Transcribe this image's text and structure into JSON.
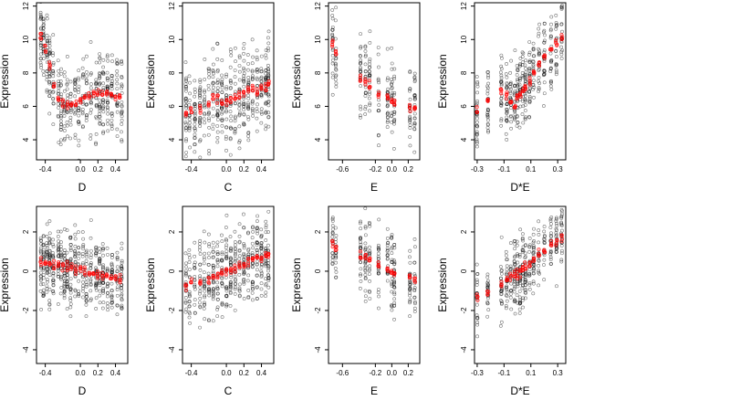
{
  "figure": {
    "background": "#ffffff"
  },
  "colors": {
    "observed": "#000000",
    "fitted": "#ff0000",
    "axis": "#000000"
  },
  "chart_data": [
    {
      "type": "scatter",
      "xlabel": "D",
      "ylabel": "Expression",
      "xlim": [
        -0.5,
        0.54
      ],
      "ylim": [
        2.8,
        12.2
      ],
      "xticks": [
        -0.4,
        0.0,
        0.2,
        0.4
      ],
      "xtick_labels": [
        "-0.4",
        "0.0",
        "0.2",
        "0.4"
      ],
      "yticks": [
        4,
        6,
        8,
        10,
        12
      ],
      "ytick_labels": [
        "4",
        "6",
        "8",
        "10",
        "12"
      ],
      "x_columns": [
        -0.45,
        -0.42,
        -0.38,
        -0.35,
        -0.31,
        -0.25,
        -0.22,
        -0.18,
        -0.15,
        -0.11,
        -0.06,
        -0.02,
        0.03,
        0.07,
        0.12,
        0.18,
        0.22,
        0.26,
        0.31,
        0.36,
        0.42,
        0.47
      ],
      "fitted": {
        "x": [
          -0.45,
          -0.4,
          -0.35,
          -0.3,
          -0.25,
          -0.2,
          -0.15,
          -0.1,
          -0.05,
          0.0,
          0.05,
          0.1,
          0.15,
          0.2,
          0.25,
          0.3,
          0.35,
          0.4,
          0.45
        ],
        "y": [
          10.2,
          9.4,
          8.4,
          7.2,
          6.4,
          6.1,
          6.0,
          6.1,
          6.2,
          6.3,
          6.5,
          6.6,
          6.7,
          6.8,
          6.7,
          6.8,
          6.7,
          6.6,
          6.5
        ]
      },
      "observed_spread": 2.2
    },
    {
      "type": "scatter",
      "xlabel": "C",
      "ylabel": "Expression",
      "xlim": [
        -0.5,
        0.54
      ],
      "ylim": [
        2.8,
        12.2
      ],
      "xticks": [
        -0.4,
        0.0,
        0.2,
        0.4
      ],
      "xtick_labels": [
        "-0.4",
        "0.0",
        "0.2",
        "0.4"
      ],
      "yticks": [
        4,
        6,
        8,
        10,
        12
      ],
      "ytick_labels": [
        "4",
        "6",
        "8",
        "10",
        "12"
      ],
      "x_columns": [
        -0.46,
        -0.42,
        -0.36,
        -0.3,
        -0.25,
        -0.2,
        -0.15,
        -0.1,
        -0.05,
        0.0,
        0.05,
        0.1,
        0.15,
        0.2,
        0.25,
        0.3,
        0.35,
        0.4,
        0.45,
        0.48
      ],
      "fitted": {
        "x": [
          -0.46,
          -0.4,
          -0.3,
          -0.2,
          -0.15,
          -0.1,
          -0.05,
          0.0,
          0.05,
          0.1,
          0.15,
          0.2,
          0.25,
          0.3,
          0.35,
          0.4,
          0.45,
          0.48
        ],
        "y": [
          5.6,
          5.7,
          5.9,
          6.1,
          6.6,
          6.5,
          6.2,
          6.3,
          6.4,
          6.5,
          6.6,
          6.8,
          6.9,
          7.0,
          7.0,
          7.1,
          7.2,
          7.3
        ]
      },
      "observed_spread": 2.4
    },
    {
      "type": "scatter",
      "xlabel": "E",
      "ylabel": "Expression",
      "xlim": [
        -0.77,
        0.34
      ],
      "ylim": [
        2.8,
        12.2
      ],
      "xticks": [
        -0.6,
        -0.2,
        0.0,
        0.2
      ],
      "xtick_labels": [
        "-0.6",
        "-0.2",
        "0.0",
        "0.2"
      ],
      "yticks": [
        4,
        6,
        8,
        10,
        12
      ],
      "ytick_labels": [
        "4",
        "6",
        "8",
        "10",
        "12"
      ],
      "x_columns": [
        -0.72,
        -0.68,
        -0.38,
        -0.32,
        -0.27,
        -0.16,
        -0.05,
        0.0,
        0.03,
        0.22,
        0.28
      ],
      "fitted": {
        "x": [
          -0.72,
          -0.68,
          -0.38,
          -0.32,
          -0.27,
          -0.16,
          -0.05,
          0.0,
          0.03,
          0.22,
          0.28
        ],
        "y": [
          9.8,
          9.3,
          7.8,
          7.5,
          7.3,
          6.8,
          6.5,
          6.4,
          6.2,
          5.9,
          5.8
        ]
      },
      "observed_spread": 2.2
    },
    {
      "type": "scatter",
      "xlabel": "D*E",
      "ylabel": "Expression",
      "xlim": [
        -0.32,
        0.36
      ],
      "ylim": [
        2.8,
        12.2
      ],
      "xticks": [
        -0.3,
        -0.1,
        0.1,
        0.3
      ],
      "xtick_labels": [
        "-0.3",
        "-0.1",
        "0.1",
        "0.3"
      ],
      "yticks": [
        4,
        6,
        8,
        10,
        12
      ],
      "ytick_labels": [
        "4",
        "6",
        "8",
        "10",
        "12"
      ],
      "x_columns": [
        -0.3,
        -0.22,
        -0.12,
        -0.08,
        -0.05,
        -0.02,
        0.0,
        0.02,
        0.04,
        0.06,
        0.09,
        0.12,
        0.16,
        0.2,
        0.25,
        0.29,
        0.33
      ],
      "fitted": {
        "x": [
          -0.3,
          -0.22,
          -0.12,
          -0.08,
          -0.05,
          -0.02,
          0.0,
          0.02,
          0.04,
          0.06,
          0.09,
          0.12,
          0.16,
          0.2,
          0.25,
          0.29,
          0.33
        ],
        "y": [
          5.8,
          6.3,
          6.9,
          6.6,
          6.3,
          6.0,
          6.5,
          6.7,
          7.0,
          7.2,
          7.5,
          8.0,
          8.5,
          9.0,
          9.4,
          9.8,
          10.2
        ]
      },
      "observed_spread": 2.0
    },
    {
      "type": "scatter",
      "xlabel": "D",
      "ylabel": "Expression",
      "xlim": [
        -0.5,
        0.54
      ],
      "ylim": [
        -4.7,
        3.3
      ],
      "xticks": [
        -0.4,
        0.0,
        0.2,
        0.4
      ],
      "xtick_labels": [
        "-0.4",
        "0.0",
        "0.2",
        "0.4"
      ],
      "yticks": [
        -4,
        -2,
        0,
        2
      ],
      "ytick_labels": [
        "-4",
        "-2",
        "0",
        "2"
      ],
      "x_columns": [
        -0.45,
        -0.42,
        -0.38,
        -0.35,
        -0.31,
        -0.25,
        -0.22,
        -0.18,
        -0.15,
        -0.11,
        -0.06,
        -0.02,
        0.03,
        0.07,
        0.12,
        0.18,
        0.22,
        0.26,
        0.31,
        0.36,
        0.42,
        0.47
      ],
      "fitted": {
        "x": [
          -0.45,
          -0.4,
          -0.35,
          -0.3,
          -0.25,
          -0.2,
          -0.15,
          -0.1,
          -0.05,
          0.0,
          0.05,
          0.1,
          0.15,
          0.2,
          0.25,
          0.3,
          0.35,
          0.4,
          0.45
        ],
        "y": [
          0.5,
          0.45,
          0.4,
          0.35,
          0.3,
          0.25,
          0.2,
          0.15,
          0.1,
          0.05,
          0.0,
          -0.05,
          -0.1,
          -0.15,
          -0.2,
          -0.25,
          -0.3,
          -0.35,
          -0.4
        ]
      },
      "observed_spread": 1.7
    },
    {
      "type": "scatter",
      "xlabel": "C",
      "ylabel": "Expression",
      "xlim": [
        -0.5,
        0.54
      ],
      "ylim": [
        -4.7,
        3.3
      ],
      "xticks": [
        -0.4,
        0.0,
        0.2,
        0.4
      ],
      "xtick_labels": [
        "-0.4",
        "0.0",
        "0.2",
        "0.4"
      ],
      "yticks": [
        -4,
        -2,
        0,
        2
      ],
      "ytick_labels": [
        "-4",
        "-2",
        "0",
        "2"
      ],
      "x_columns": [
        -0.46,
        -0.42,
        -0.36,
        -0.3,
        -0.25,
        -0.2,
        -0.15,
        -0.1,
        -0.05,
        0.0,
        0.05,
        0.1,
        0.15,
        0.2,
        0.25,
        0.3,
        0.35,
        0.4,
        0.45,
        0.48
      ],
      "fitted": {
        "x": [
          -0.46,
          -0.4,
          -0.3,
          -0.2,
          -0.15,
          -0.1,
          -0.05,
          0.0,
          0.05,
          0.1,
          0.15,
          0.2,
          0.25,
          0.3,
          0.35,
          0.4,
          0.45,
          0.48
        ],
        "y": [
          -0.8,
          -0.7,
          -0.55,
          -0.4,
          -0.3,
          -0.2,
          -0.1,
          0.0,
          0.1,
          0.2,
          0.3,
          0.4,
          0.5,
          0.6,
          0.7,
          0.75,
          0.85,
          0.9
        ]
      },
      "observed_spread": 1.8
    },
    {
      "type": "scatter",
      "xlabel": "E",
      "ylabel": "Expression",
      "xlim": [
        -0.77,
        0.34
      ],
      "ylim": [
        -4.7,
        3.3
      ],
      "xticks": [
        -0.6,
        -0.2,
        0.0,
        0.2
      ],
      "xtick_labels": [
        "-0.6",
        "-0.2",
        "0.0",
        "0.2"
      ],
      "yticks": [
        -4,
        -2,
        0,
        2
      ],
      "ytick_labels": [
        "-4",
        "-2",
        "0",
        "2"
      ],
      "x_columns": [
        -0.72,
        -0.68,
        -0.38,
        -0.32,
        -0.27,
        -0.16,
        -0.05,
        0.0,
        0.03,
        0.22,
        0.28
      ],
      "fitted": {
        "x": [
          -0.72,
          -0.68,
          -0.38,
          -0.32,
          -0.27,
          -0.16,
          -0.05,
          0.0,
          0.03,
          0.22,
          0.28
        ],
        "y": [
          1.4,
          1.2,
          0.8,
          0.7,
          0.6,
          0.4,
          0.1,
          0.0,
          -0.1,
          -0.3,
          -0.5
        ]
      },
      "observed_spread": 1.8
    },
    {
      "type": "scatter",
      "xlabel": "D*E",
      "ylabel": "Expression",
      "xlim": [
        -0.32,
        0.36
      ],
      "ylim": [
        -4.7,
        3.3
      ],
      "xticks": [
        -0.3,
        -0.1,
        0.1,
        0.3
      ],
      "xtick_labels": [
        "-0.3",
        "-0.1",
        "0.1",
        "0.3"
      ],
      "yticks": [
        -4,
        -2,
        0,
        2
      ],
      "ytick_labels": [
        "-4",
        "-2",
        "0",
        "2"
      ],
      "x_columns": [
        -0.3,
        -0.22,
        -0.12,
        -0.08,
        -0.05,
        -0.02,
        0.0,
        0.02,
        0.04,
        0.06,
        0.09,
        0.12,
        0.16,
        0.2,
        0.25,
        0.29,
        0.33
      ],
      "fitted": {
        "x": [
          -0.3,
          -0.22,
          -0.12,
          -0.08,
          -0.05,
          -0.02,
          0.0,
          0.02,
          0.04,
          0.06,
          0.09,
          0.12,
          0.16,
          0.2,
          0.25,
          0.29,
          0.33
        ],
        "y": [
          -1.4,
          -1.1,
          -0.7,
          -0.5,
          -0.35,
          -0.2,
          -0.1,
          0.0,
          0.15,
          0.3,
          0.45,
          0.6,
          0.85,
          1.1,
          1.35,
          1.55,
          1.75
        ]
      },
      "observed_spread": 1.6
    }
  ]
}
